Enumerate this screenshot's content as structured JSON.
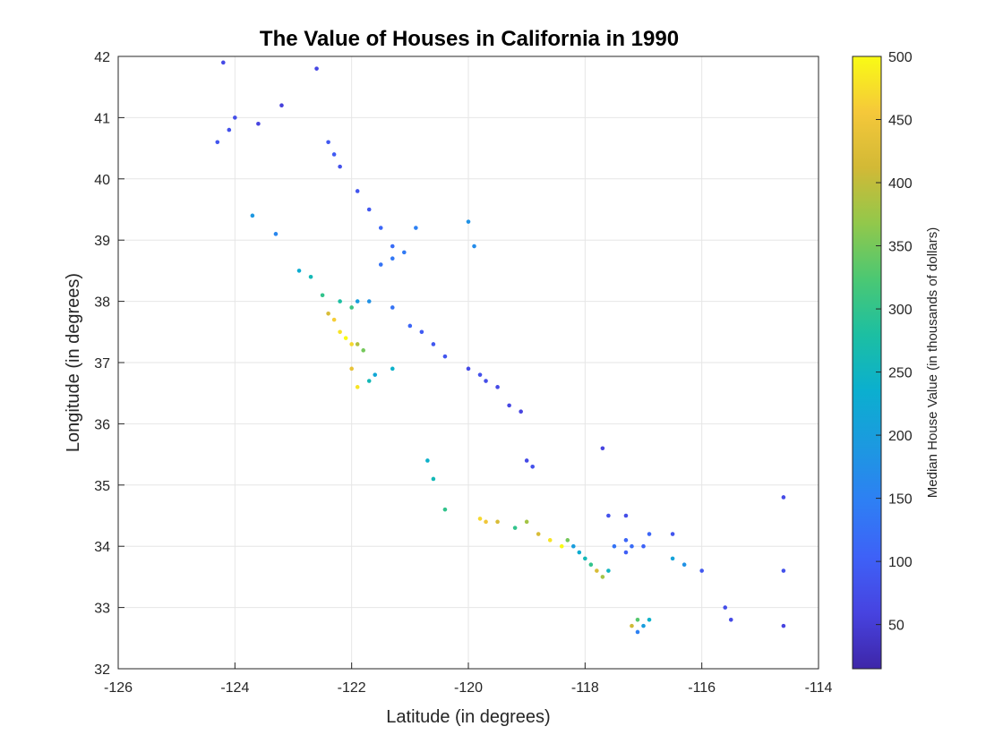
{
  "chart_data": {
    "type": "scatter",
    "title": "The Value of Houses in California in 1990",
    "xlabel": "Latitude (in degrees)",
    "ylabel": "Longitude (in degrees)",
    "xlim": [
      -126,
      -114
    ],
    "ylim": [
      32,
      42
    ],
    "xticks": [
      -126,
      -124,
      -122,
      -120,
      -118,
      -116,
      -114
    ],
    "yticks": [
      32,
      33,
      34,
      35,
      36,
      37,
      38,
      39,
      40,
      41,
      42
    ],
    "grid": true,
    "colorbar": {
      "label": "Median House Value (in thousands of dollars)",
      "range": [
        15,
        500
      ],
      "ticks": [
        50,
        100,
        150,
        200,
        250,
        300,
        350,
        400,
        450,
        500
      ],
      "colormap": [
        "#3e26a8",
        "#4743e0",
        "#3e61f7",
        "#2e7ff4",
        "#1c99e0",
        "#0bafcf",
        "#1cbfa2",
        "#4bc873",
        "#92c84b",
        "#d2b936",
        "#f5c83a",
        "#f9fb15"
      ]
    },
    "points": [
      [
        -124.2,
        41.9,
        70
      ],
      [
        -124.0,
        41.0,
        75
      ],
      [
        -124.1,
        40.8,
        80
      ],
      [
        -124.3,
        40.6,
        85
      ],
      [
        -123.6,
        40.9,
        60
      ],
      [
        -123.2,
        41.2,
        55
      ],
      [
        -122.6,
        41.8,
        65
      ],
      [
        -122.4,
        40.6,
        90
      ],
      [
        -122.3,
        40.4,
        95
      ],
      [
        -122.2,
        40.2,
        80
      ],
      [
        -121.9,
        39.8,
        85
      ],
      [
        -121.7,
        39.5,
        90
      ],
      [
        -121.5,
        39.2,
        110
      ],
      [
        -121.3,
        38.9,
        120
      ],
      [
        -121.5,
        38.6,
        130
      ],
      [
        -121.3,
        38.7,
        135
      ],
      [
        -121.1,
        38.8,
        140
      ],
      [
        -120.9,
        39.2,
        150
      ],
      [
        -120.0,
        39.3,
        180
      ],
      [
        -119.9,
        38.9,
        170
      ],
      [
        -123.7,
        39.4,
        190
      ],
      [
        -123.3,
        39.1,
        160
      ],
      [
        -122.9,
        38.5,
        230
      ],
      [
        -122.7,
        38.4,
        260
      ],
      [
        -122.5,
        38.1,
        300
      ],
      [
        -122.4,
        37.8,
        420
      ],
      [
        -122.3,
        37.7,
        460
      ],
      [
        -122.2,
        37.5,
        480
      ],
      [
        -122.1,
        37.4,
        500
      ],
      [
        -122.0,
        37.3,
        470
      ],
      [
        -121.9,
        37.3,
        390
      ],
      [
        -121.8,
        37.2,
        350
      ],
      [
        -122.0,
        36.9,
        440
      ],
      [
        -121.9,
        36.6,
        480
      ],
      [
        -121.7,
        36.7,
        260
      ],
      [
        -121.6,
        36.8,
        220
      ],
      [
        -121.3,
        36.9,
        240
      ],
      [
        -122.2,
        38.0,
        280
      ],
      [
        -122.0,
        37.9,
        310
      ],
      [
        -121.9,
        38.0,
        200
      ],
      [
        -121.7,
        38.0,
        180
      ],
      [
        -121.3,
        37.9,
        130
      ],
      [
        -121.0,
        37.6,
        110
      ],
      [
        -120.8,
        37.5,
        95
      ],
      [
        -120.6,
        37.3,
        90
      ],
      [
        -120.4,
        37.1,
        85
      ],
      [
        -120.0,
        36.9,
        70
      ],
      [
        -119.8,
        36.8,
        80
      ],
      [
        -119.7,
        36.7,
        75
      ],
      [
        -119.5,
        36.6,
        70
      ],
      [
        -119.3,
        36.3,
        65
      ],
      [
        -119.1,
        36.2,
        60
      ],
      [
        -119.0,
        35.4,
        70
      ],
      [
        -118.9,
        35.3,
        80
      ],
      [
        -119.2,
        34.3,
        300
      ],
      [
        -119.0,
        34.4,
        380
      ],
      [
        -118.8,
        34.2,
        420
      ],
      [
        -118.6,
        34.1,
        480
      ],
      [
        -118.4,
        34.0,
        500
      ],
      [
        -118.3,
        34.1,
        350
      ],
      [
        -118.2,
        34.0,
        200
      ],
      [
        -118.1,
        33.9,
        230
      ],
      [
        -118.0,
        33.8,
        260
      ],
      [
        -117.9,
        33.7,
        300
      ],
      [
        -117.8,
        33.6,
        420
      ],
      [
        -117.7,
        33.5,
        380
      ],
      [
        -117.6,
        33.6,
        250
      ],
      [
        -117.5,
        34.0,
        130
      ],
      [
        -117.3,
        34.1,
        110
      ],
      [
        -117.2,
        34.0,
        120
      ],
      [
        -117.0,
        34.0,
        105
      ],
      [
        -117.3,
        33.9,
        100
      ],
      [
        -117.6,
        34.5,
        80
      ],
      [
        -117.3,
        34.5,
        75
      ],
      [
        -117.1,
        32.8,
        330
      ],
      [
        -117.2,
        32.7,
        410
      ],
      [
        -117.1,
        32.6,
        150
      ],
      [
        -117.0,
        32.7,
        200
      ],
      [
        -116.9,
        32.8,
        240
      ],
      [
        -116.5,
        33.8,
        210
      ],
      [
        -116.3,
        33.7,
        180
      ],
      [
        -116.0,
        33.6,
        90
      ],
      [
        -115.5,
        32.8,
        70
      ],
      [
        -115.6,
        33.0,
        75
      ],
      [
        -114.6,
        32.7,
        60
      ],
      [
        -114.6,
        33.6,
        80
      ],
      [
        -114.6,
        34.8,
        70
      ],
      [
        -116.5,
        34.2,
        85
      ],
      [
        -116.9,
        34.2,
        110
      ],
      [
        -117.7,
        35.6,
        60
      ],
      [
        -120.6,
        35.1,
        260
      ],
      [
        -120.7,
        35.4,
        240
      ],
      [
        -120.4,
        34.6,
        300
      ],
      [
        -119.7,
        34.4,
        450
      ],
      [
        -119.8,
        34.45,
        470
      ],
      [
        -119.5,
        34.4,
        420
      ]
    ]
  }
}
